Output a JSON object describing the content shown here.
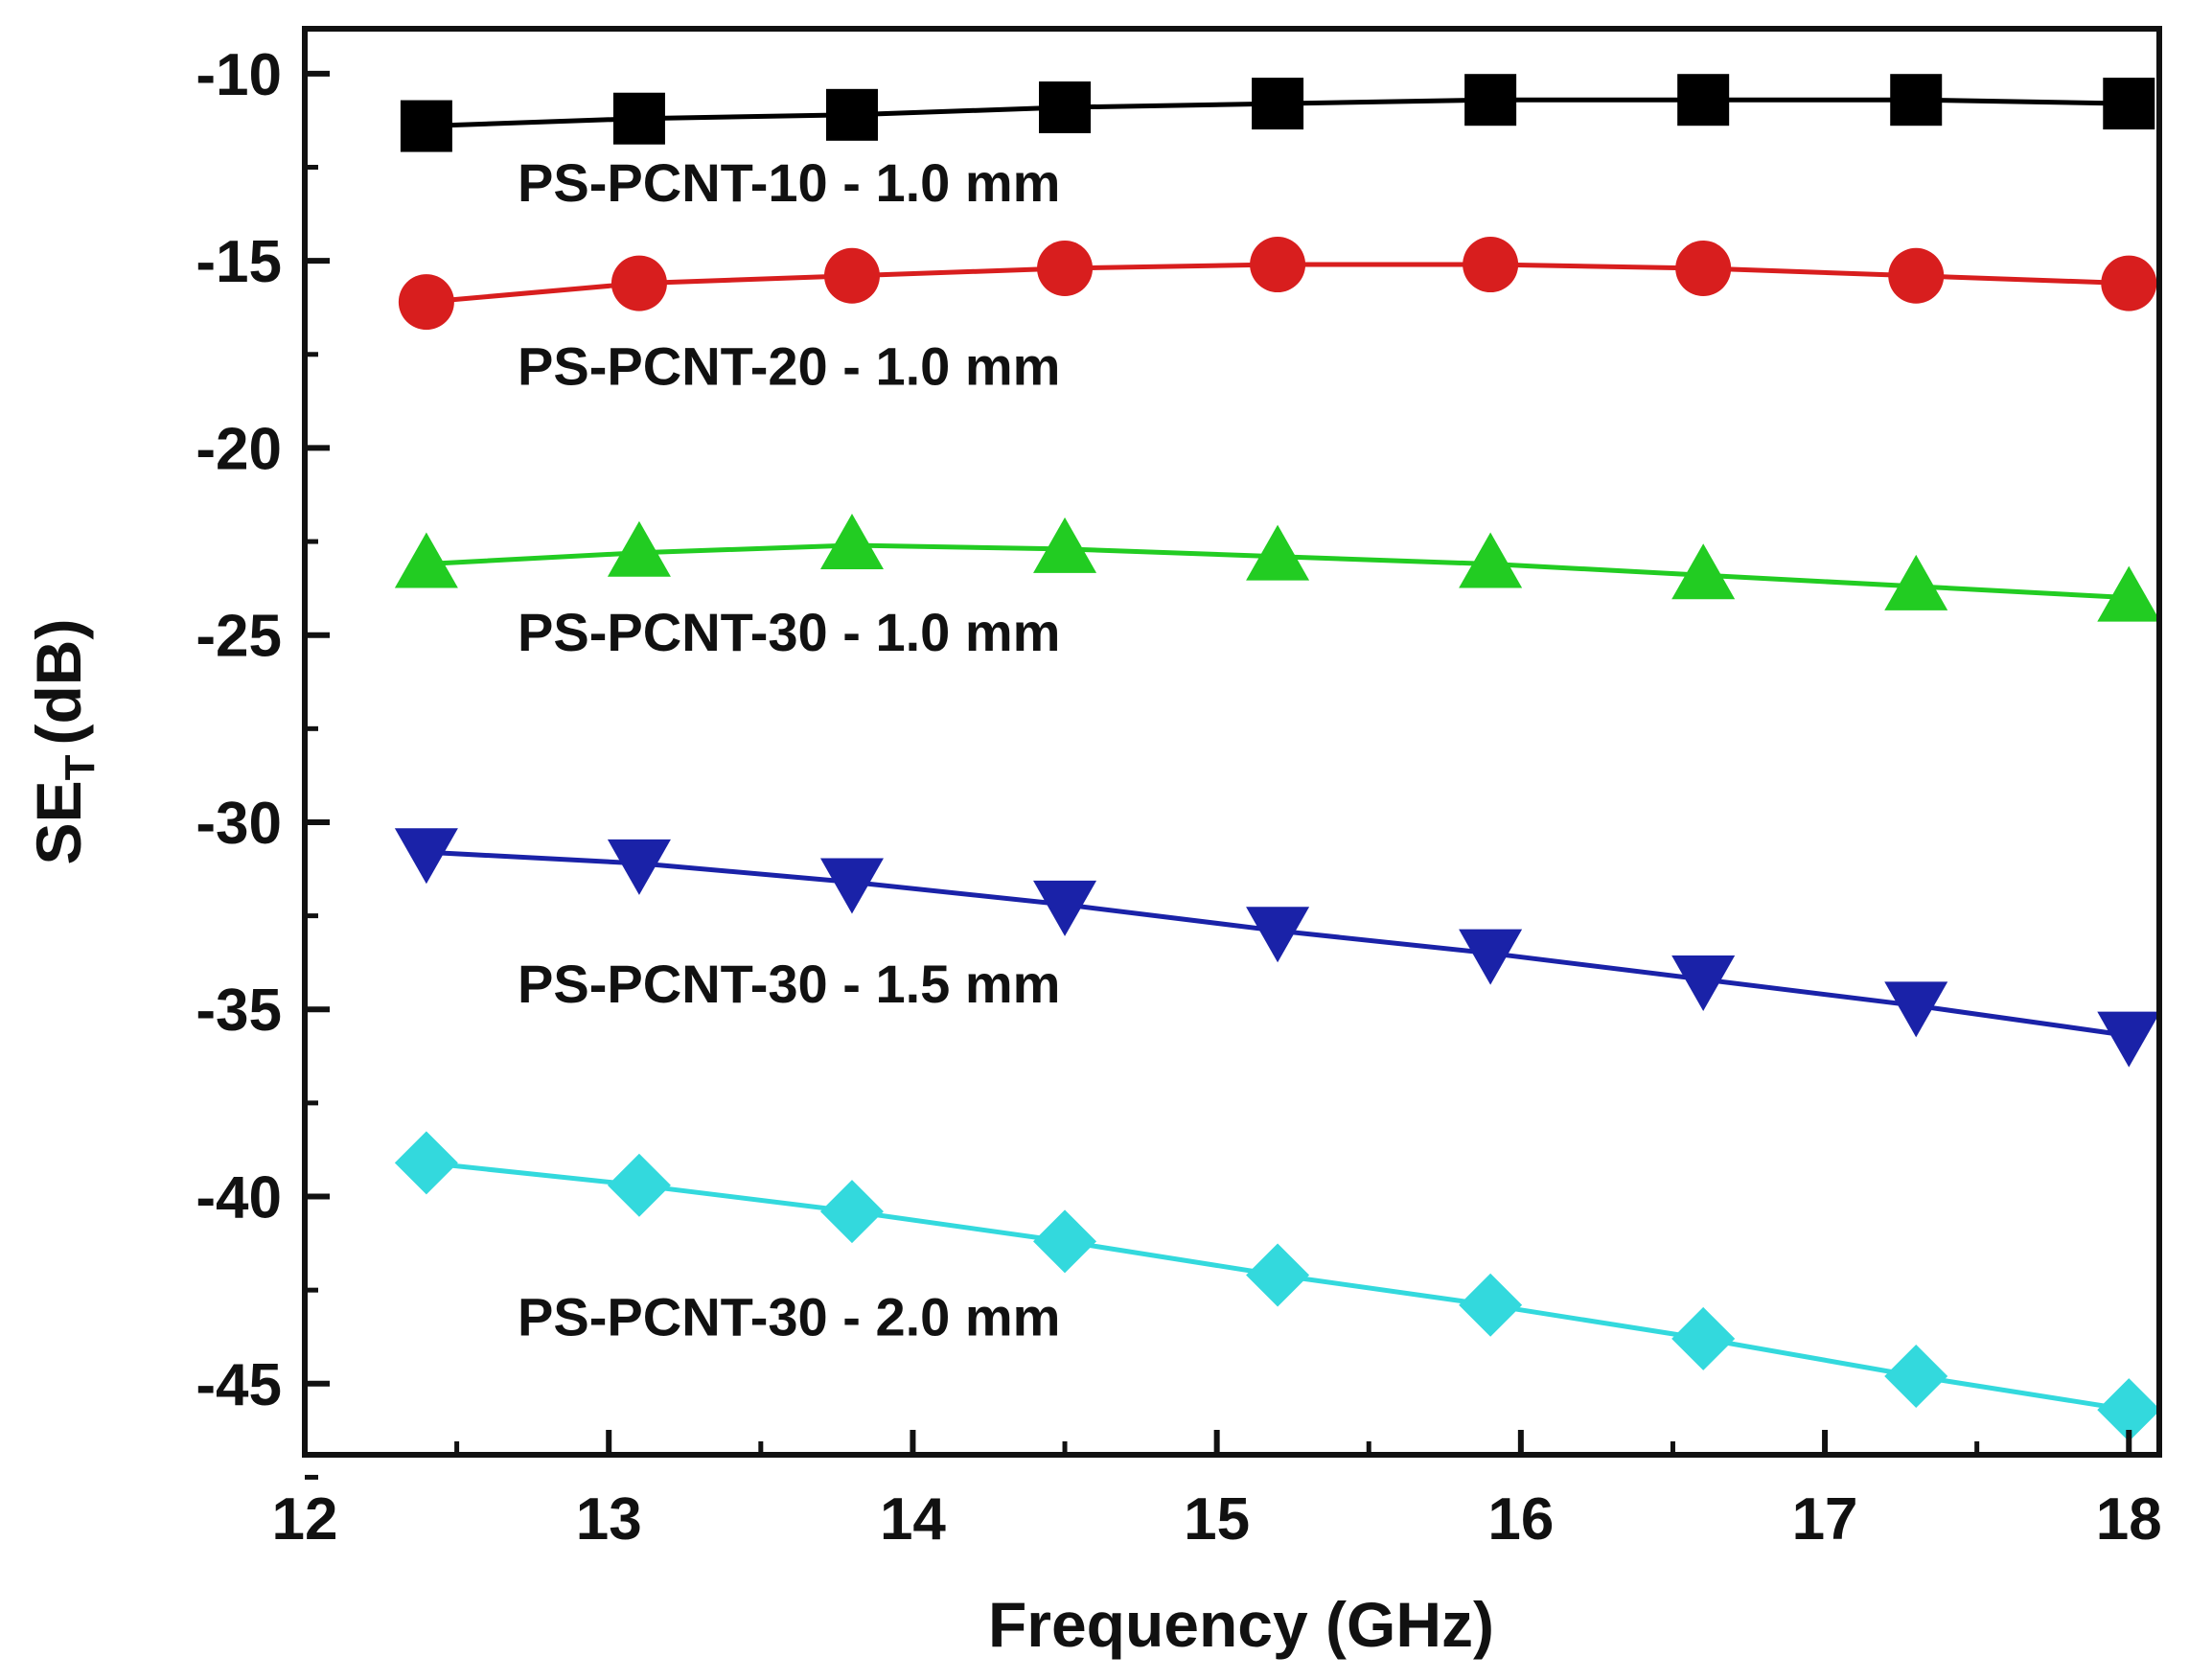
{
  "chart_data": {
    "type": "line",
    "title": "",
    "xlabel": "Frequency (GHz)",
    "ylabel_main": "SE",
    "ylabel_sub": "T",
    "ylabel_unit": "(dB)",
    "xlim": [
      12,
      18.1
    ],
    "ylim": [
      -46.9,
      -8.8
    ],
    "xticks": [
      12,
      13,
      14,
      15,
      16,
      17,
      18
    ],
    "xtick_labels": [
      "12",
      "13",
      "14",
      "15",
      "16",
      "17",
      "18"
    ],
    "yticks": [
      -10,
      -15,
      -20,
      -25,
      -30,
      -35,
      -40,
      -45
    ],
    "ytick_labels": [
      "-10",
      "-15",
      "-20",
      "-25",
      "-30",
      "-35",
      "-40",
      "-45"
    ],
    "x": [
      12.4,
      13.1,
      13.8,
      14.5,
      15.2,
      15.9,
      16.6,
      17.3,
      18.0
    ],
    "series": [
      {
        "name": "PS-PCNT-10 - 1.0 mm",
        "marker": "square",
        "color": "#000000",
        "values": [
          -11.4,
          -11.2,
          -11.1,
          -10.9,
          -10.8,
          -10.7,
          -10.7,
          -10.7,
          -10.8
        ],
        "label_x": 12.7,
        "label_y": -12.9
      },
      {
        "name": "PS-PCNT-20 - 1.0 mm",
        "marker": "circle",
        "color": "#d81e1e",
        "values": [
          -16.1,
          -15.6,
          -15.4,
          -15.2,
          -15.1,
          -15.1,
          -15.2,
          -15.4,
          -15.6
        ],
        "label_x": 12.7,
        "label_y": -17.8
      },
      {
        "name": "PS-PCNT-30 - 1.0 mm",
        "marker": "triangle-up",
        "color": "#22cc22",
        "values": [
          -23.1,
          -22.8,
          -22.6,
          -22.7,
          -22.9,
          -23.1,
          -23.4,
          -23.7,
          -24.0
        ],
        "label_x": 12.7,
        "label_y": -24.9
      },
      {
        "name": "PS-PCNT-30 - 1.5 mm",
        "marker": "triangle-down",
        "color": "#1a22a8",
        "values": [
          -30.8,
          -31.1,
          -31.6,
          -32.2,
          -32.9,
          -33.5,
          -34.2,
          -34.9,
          -35.7
        ],
        "label_x": 12.7,
        "label_y": -34.3
      },
      {
        "name": "PS-PCNT-30 - 2.0 mm",
        "marker": "diamond",
        "color": "#33d9dd",
        "values": [
          -39.1,
          -39.7,
          -40.4,
          -41.2,
          -42.1,
          -42.9,
          -43.8,
          -44.8,
          -45.7
        ],
        "label_x": 12.7,
        "label_y": -43.2
      }
    ]
  }
}
